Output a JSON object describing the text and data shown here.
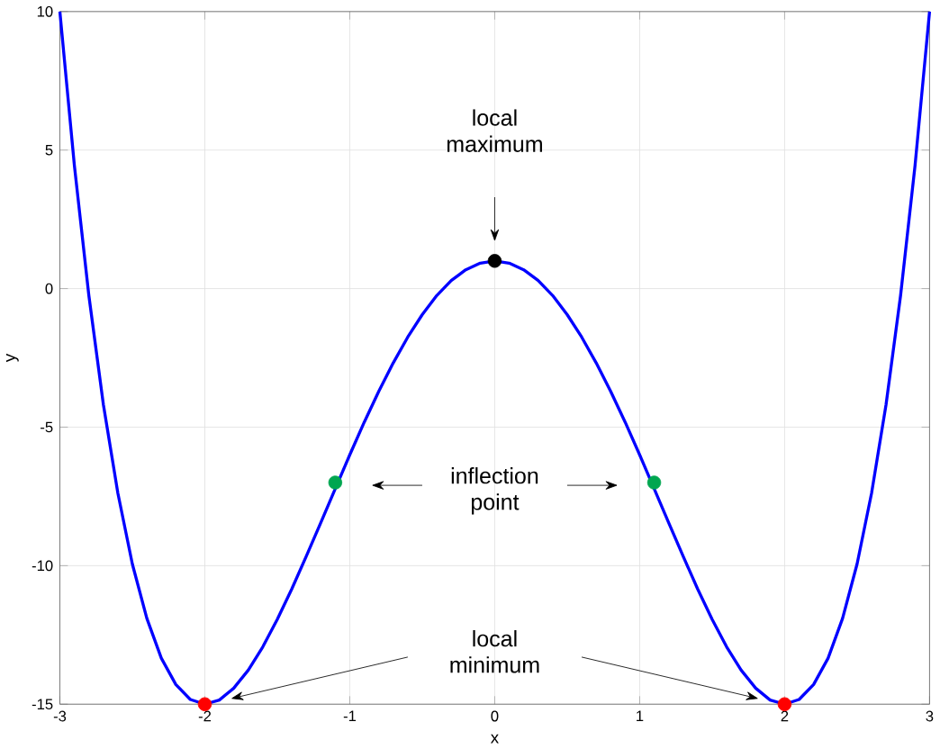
{
  "chart_data": {
    "type": "line",
    "xlabel": "x",
    "ylabel": "y",
    "xlim": [
      -3,
      3
    ],
    "ylim": [
      -15,
      10
    ],
    "xticks": [
      -3,
      -2,
      -1,
      0,
      1,
      2,
      3
    ],
    "yticks": [
      -15,
      -10,
      -5,
      0,
      5,
      10
    ],
    "grid": true,
    "series": [
      {
        "type": "line",
        "color": "#0000ff",
        "marker": "none",
        "x": [
          -3,
          -2.9,
          -2.8,
          -2.7,
          -2.6,
          -2.5,
          -2.4,
          -2.3,
          -2.2,
          -2.1,
          -2.0,
          -1.9,
          -1.8,
          -1.7,
          -1.6,
          -1.5,
          -1.4,
          -1.3,
          -1.2,
          -1.1,
          -1.0,
          -0.9,
          -0.8,
          -0.7,
          -0.6,
          -0.5,
          -0.4,
          -0.3,
          -0.2,
          -0.1,
          0,
          0.1,
          0.2,
          0.3,
          0.4,
          0.5,
          0.6,
          0.7,
          0.8,
          0.9,
          1.0,
          1.1,
          1.2,
          1.3,
          1.4,
          1.5,
          1.6,
          1.7,
          1.8,
          1.9,
          2.0,
          2.1,
          2.2,
          2.3,
          2.4,
          2.5,
          2.6,
          2.7,
          2.8,
          2.9,
          3
        ],
        "values": [
          10,
          4.45,
          -0.25,
          -4.18,
          -7.38,
          -9.94,
          -11.9,
          -13.34,
          -14.29,
          -14.83,
          -15,
          -14.85,
          -14.42,
          -13.77,
          -12.93,
          -11.94,
          -10.84,
          -9.66,
          -8.45,
          -7.22,
          -6,
          -4.82,
          -3.71,
          -2.68,
          -1.75,
          -0.94,
          -0.25,
          0.29,
          0.68,
          0.92,
          1,
          0.92,
          0.68,
          0.29,
          -0.25,
          -0.94,
          -1.75,
          -2.68,
          -3.71,
          -4.82,
          -6,
          -7.22,
          -8.45,
          -9.66,
          -10.84,
          -11.94,
          -12.93,
          -13.77,
          -14.42,
          -14.85,
          -15,
          -14.83,
          -14.29,
          -13.34,
          -11.9,
          -9.94,
          -7.38,
          -4.18,
          -0.25,
          4.45,
          10
        ]
      },
      {
        "type": "scatter",
        "color": "#000000",
        "marker": "circle",
        "x": [
          0
        ],
        "values": [
          1
        ]
      },
      {
        "type": "scatter",
        "color": "#00a650",
        "marker": "circle",
        "x": [
          -1.1,
          1.1
        ],
        "values": [
          -7,
          -7
        ]
      },
      {
        "type": "scatter",
        "color": "#ff0000",
        "marker": "circle",
        "x": [
          -2,
          2
        ],
        "values": [
          -15,
          -15
        ]
      }
    ],
    "annotations": [
      "local maximum",
      "inflection point",
      "local minimum"
    ]
  }
}
